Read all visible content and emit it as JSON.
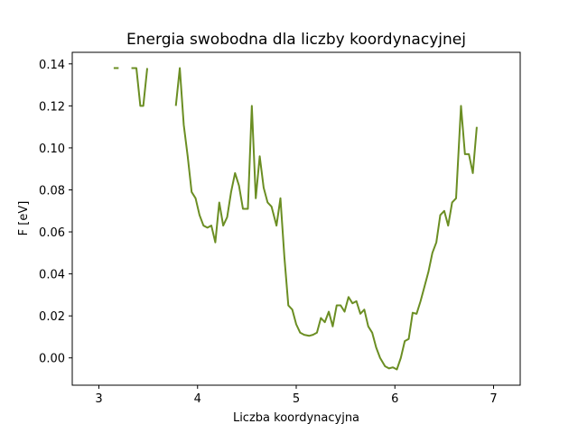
{
  "chart_data": {
    "type": "line",
    "title": "Energia swobodna dla liczby koordynacyjnej",
    "xlabel": "Liczba koordynacyjna",
    "ylabel": "F [eV]",
    "xlim": [
      2.73,
      7.27
    ],
    "ylim": [
      -0.013,
      0.1455
    ],
    "xticks": [
      3,
      4,
      5,
      6,
      7
    ],
    "xtick_labels": [
      "3",
      "4",
      "5",
      "6",
      "7"
    ],
    "yticks": [
      0.0,
      0.02,
      0.04,
      0.06,
      0.08,
      0.1,
      0.12,
      0.14
    ],
    "ytick_labels": [
      "0.00",
      "0.02",
      "0.04",
      "0.06",
      "0.08",
      "0.10",
      "0.12",
      "0.14"
    ],
    "grid": false,
    "series": [
      {
        "color": "#6b8e23",
        "segments": [
          [
            [
              3.15,
              0.138
            ],
            [
              3.2,
              0.138
            ]
          ],
          [
            [
              3.33,
              0.138
            ],
            [
              3.38,
              0.138
            ],
            [
              3.42,
              0.12
            ],
            [
              3.45,
              0.12
            ],
            [
              3.49,
              0.138
            ]
          ],
          [
            [
              3.78,
              0.12
            ],
            [
              3.82,
              0.138
            ],
            [
              3.86,
              0.111
            ],
            [
              3.9,
              0.096
            ],
            [
              3.94,
              0.079
            ],
            [
              3.98,
              0.076
            ],
            [
              4.02,
              0.068
            ],
            [
              4.06,
              0.063
            ],
            [
              4.1,
              0.062
            ],
            [
              4.14,
              0.063
            ],
            [
              4.18,
              0.055
            ],
            [
              4.22,
              0.074
            ],
            [
              4.26,
              0.063
            ],
            [
              4.3,
              0.067
            ],
            [
              4.34,
              0.079
            ],
            [
              4.38,
              0.088
            ],
            [
              4.42,
              0.082
            ],
            [
              4.46,
              0.071
            ],
            [
              4.51,
              0.071
            ],
            [
              4.55,
              0.12
            ],
            [
              4.59,
              0.076
            ],
            [
              4.63,
              0.096
            ],
            [
              4.67,
              0.081
            ],
            [
              4.71,
              0.074
            ],
            [
              4.75,
              0.072
            ],
            [
              4.8,
              0.063
            ],
            [
              4.84,
              0.076
            ],
            [
              4.88,
              0.048
            ],
            [
              4.92,
              0.025
            ],
            [
              4.96,
              0.023
            ],
            [
              5.0,
              0.016
            ],
            [
              5.04,
              0.012
            ],
            [
              5.08,
              0.011
            ],
            [
              5.13,
              0.0105
            ],
            [
              5.17,
              0.011
            ],
            [
              5.21,
              0.012
            ],
            [
              5.25,
              0.019
            ],
            [
              5.29,
              0.017
            ],
            [
              5.33,
              0.022
            ],
            [
              5.37,
              0.015
            ],
            [
              5.41,
              0.025
            ],
            [
              5.45,
              0.025
            ],
            [
              5.49,
              0.022
            ],
            [
              5.53,
              0.029
            ],
            [
              5.57,
              0.026
            ],
            [
              5.61,
              0.027
            ],
            [
              5.65,
              0.021
            ],
            [
              5.69,
              0.023
            ],
            [
              5.73,
              0.015
            ],
            [
              5.77,
              0.012
            ],
            [
              5.81,
              0.005
            ],
            [
              5.85,
              0.0
            ],
            [
              5.9,
              -0.004
            ],
            [
              5.94,
              -0.005
            ],
            [
              5.98,
              -0.0045
            ],
            [
              6.02,
              -0.0055
            ],
            [
              6.06,
              0.0
            ],
            [
              6.1,
              0.008
            ],
            [
              6.14,
              0.009
            ],
            [
              6.18,
              0.0215
            ],
            [
              6.22,
              0.021
            ],
            [
              6.26,
              0.027
            ],
            [
              6.3,
              0.034
            ],
            [
              6.34,
              0.041
            ],
            [
              6.38,
              0.05
            ],
            [
              6.42,
              0.055
            ],
            [
              6.46,
              0.068
            ],
            [
              6.5,
              0.07
            ],
            [
              6.54,
              0.063
            ],
            [
              6.58,
              0.074
            ],
            [
              6.62,
              0.076
            ],
            [
              6.67,
              0.12
            ],
            [
              6.71,
              0.097
            ],
            [
              6.75,
              0.097
            ],
            [
              6.79,
              0.088
            ],
            [
              6.83,
              0.11
            ]
          ]
        ]
      }
    ]
  }
}
